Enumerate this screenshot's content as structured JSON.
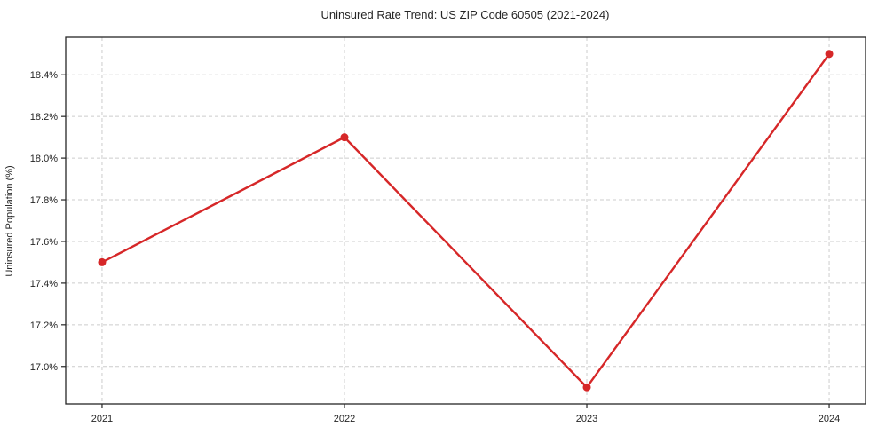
{
  "chart_data": {
    "type": "line",
    "title": "Uninsured Rate Trend: US ZIP Code 60505 (2021-2024)",
    "xlabel": "",
    "ylabel": "Uninsured Population (%)",
    "categories": [
      "2021",
      "2022",
      "2023",
      "2024"
    ],
    "x": [
      2021,
      2022,
      2023,
      2024
    ],
    "values": [
      17.5,
      18.1,
      16.9,
      18.5
    ],
    "y_ticks": [
      17.0,
      17.2,
      17.4,
      17.6,
      17.8,
      18.0,
      18.2,
      18.4
    ],
    "y_tick_labels": [
      "17.0%",
      "17.2%",
      "17.4%",
      "17.6%",
      "17.8%",
      "18.0%",
      "18.2%",
      "18.4%"
    ],
    "xlim": [
      2020.85,
      2024.15
    ],
    "ylim": [
      16.82,
      18.58
    ],
    "grid": true,
    "grid_color": "#cccccc",
    "line_color": "#d62728",
    "marker": "circle",
    "axis_color": "#262626",
    "background_color": "#ffffff",
    "legend": "none"
  }
}
